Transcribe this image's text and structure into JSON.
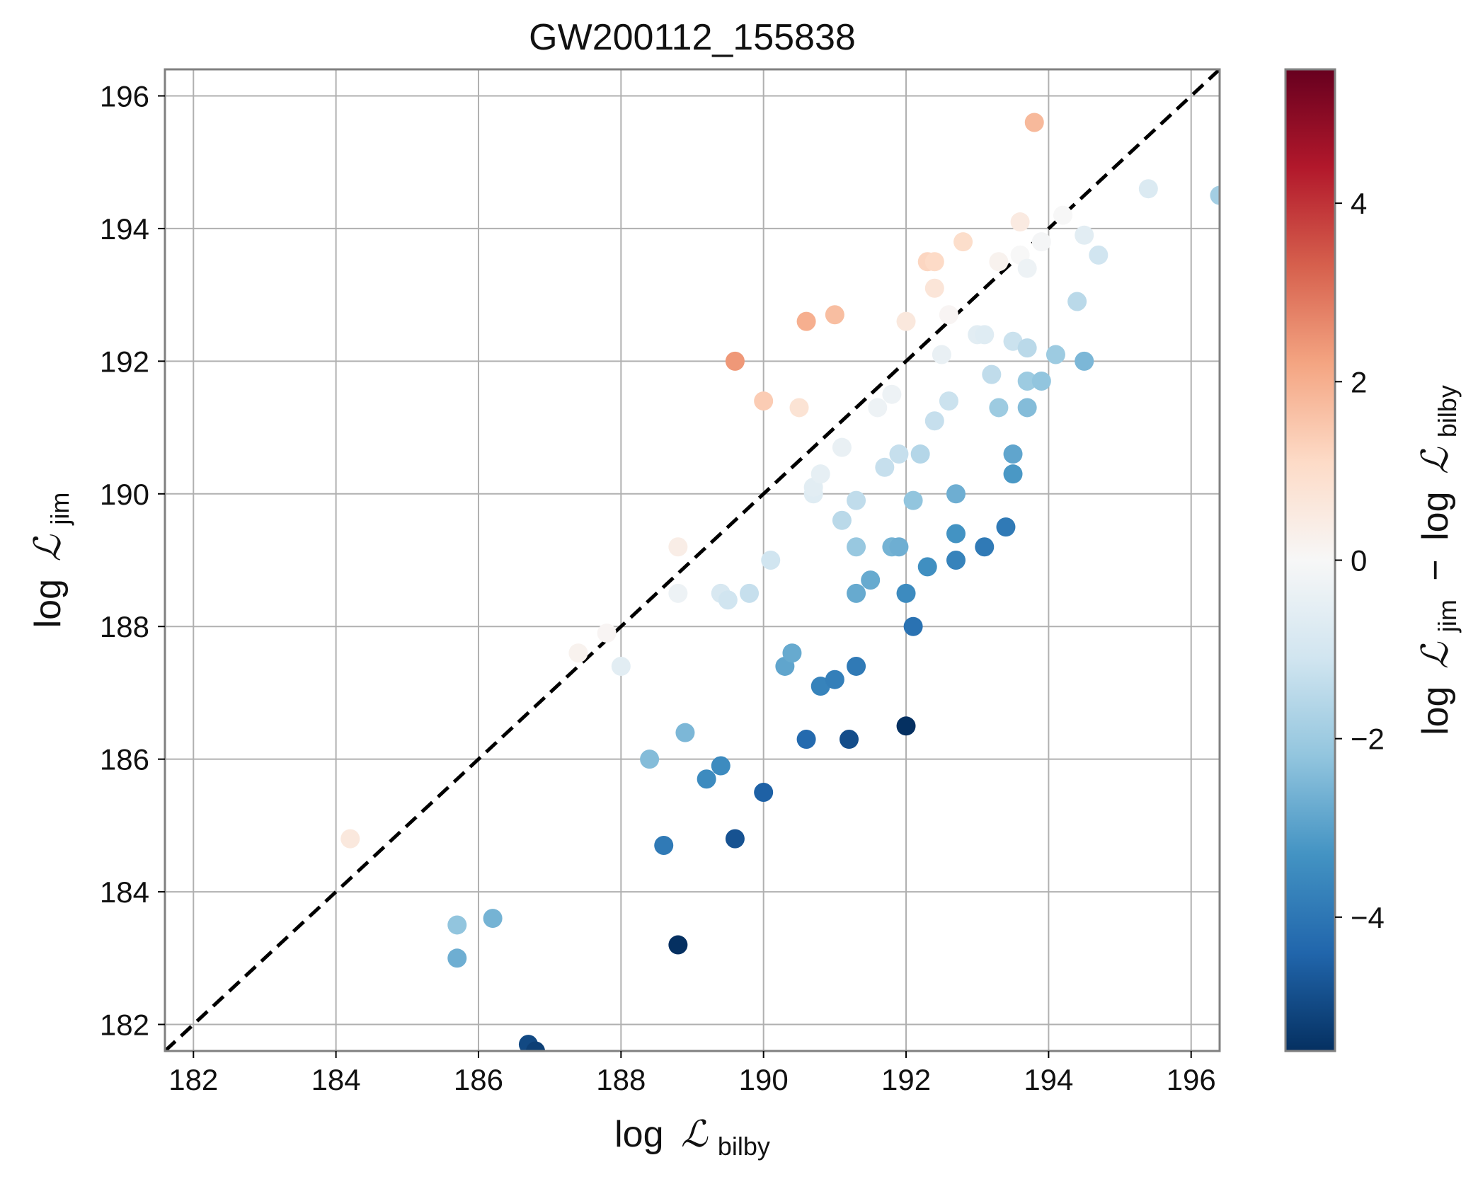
{
  "chart_data": {
    "type": "scatter",
    "title": "GW200112_155838",
    "xlabel": {
      "prefix": "log",
      "symbol": "ℒ",
      "sub": "bilby"
    },
    "ylabel": {
      "prefix": "log",
      "symbol": "ℒ",
      "sub": "jim"
    },
    "colorbar_label": {
      "a_prefix": "log",
      "a_symbol": "ℒ",
      "a_sub": "jim",
      "op": "−",
      "b_prefix": "log",
      "b_symbol": "ℒ",
      "b_sub": "bilby"
    },
    "xlim": [
      181.6,
      196.4
    ],
    "ylim": [
      181.6,
      196.4
    ],
    "xticks": [
      182,
      184,
      186,
      188,
      190,
      192,
      194,
      196
    ],
    "yticks": [
      182,
      184,
      186,
      188,
      190,
      192,
      194,
      196
    ],
    "xtick_labels": [
      "182",
      "184",
      "186",
      "188",
      "190",
      "192",
      "194",
      "196"
    ],
    "ytick_labels": [
      "182",
      "184",
      "186",
      "188",
      "190",
      "192",
      "194",
      "196"
    ],
    "color_range": [
      -5.5,
      5.5
    ],
    "colorbar_ticks": [
      -4,
      -2,
      0,
      2,
      4
    ],
    "colorbar_tick_labels": [
      "−4",
      "−2",
      "0",
      "2",
      "4"
    ],
    "colormap": "RdBu_r",
    "reference_line": "y = x (black dashed)",
    "grid": true,
    "points": [
      {
        "x": 184.2,
        "y": 184.8
      },
      {
        "x": 185.7,
        "y": 183.5
      },
      {
        "x": 185.7,
        "y": 183.0
      },
      {
        "x": 186.2,
        "y": 183.6
      },
      {
        "x": 186.7,
        "y": 181.7
      },
      {
        "x": 186.8,
        "y": 181.6
      },
      {
        "x": 187.4,
        "y": 187.6
      },
      {
        "x": 187.8,
        "y": 187.9
      },
      {
        "x": 188.0,
        "y": 187.4
      },
      {
        "x": 188.4,
        "y": 186.0
      },
      {
        "x": 188.6,
        "y": 184.7
      },
      {
        "x": 188.8,
        "y": 188.5
      },
      {
        "x": 188.8,
        "y": 189.2
      },
      {
        "x": 188.8,
        "y": 183.2
      },
      {
        "x": 188.9,
        "y": 186.4
      },
      {
        "x": 189.2,
        "y": 185.7
      },
      {
        "x": 189.4,
        "y": 185.9
      },
      {
        "x": 189.4,
        "y": 188.5
      },
      {
        "x": 189.5,
        "y": 188.4
      },
      {
        "x": 189.6,
        "y": 192.0
      },
      {
        "x": 189.6,
        "y": 184.8
      },
      {
        "x": 189.8,
        "y": 188.5
      },
      {
        "x": 190.0,
        "y": 191.4
      },
      {
        "x": 190.0,
        "y": 185.5
      },
      {
        "x": 190.1,
        "y": 189.0
      },
      {
        "x": 190.3,
        "y": 187.4
      },
      {
        "x": 190.4,
        "y": 187.6
      },
      {
        "x": 190.5,
        "y": 191.3
      },
      {
        "x": 190.6,
        "y": 186.3
      },
      {
        "x": 190.6,
        "y": 192.6
      },
      {
        "x": 190.7,
        "y": 190.0
      },
      {
        "x": 190.7,
        "y": 190.1
      },
      {
        "x": 190.8,
        "y": 190.3
      },
      {
        "x": 190.8,
        "y": 187.1
      },
      {
        "x": 191.0,
        "y": 192.7
      },
      {
        "x": 191.0,
        "y": 187.2
      },
      {
        "x": 191.1,
        "y": 190.7
      },
      {
        "x": 191.1,
        "y": 189.6
      },
      {
        "x": 191.2,
        "y": 186.3
      },
      {
        "x": 191.3,
        "y": 189.9
      },
      {
        "x": 191.3,
        "y": 187.4
      },
      {
        "x": 191.3,
        "y": 188.5
      },
      {
        "x": 191.3,
        "y": 189.2
      },
      {
        "x": 191.5,
        "y": 188.7
      },
      {
        "x": 191.6,
        "y": 191.3
      },
      {
        "x": 191.7,
        "y": 190.4
      },
      {
        "x": 191.8,
        "y": 191.5
      },
      {
        "x": 191.8,
        "y": 189.2
      },
      {
        "x": 191.9,
        "y": 190.6
      },
      {
        "x": 191.9,
        "y": 189.2
      },
      {
        "x": 192.0,
        "y": 192.6
      },
      {
        "x": 192.0,
        "y": 188.5
      },
      {
        "x": 192.0,
        "y": 186.5
      },
      {
        "x": 192.1,
        "y": 189.9
      },
      {
        "x": 192.1,
        "y": 188.0
      },
      {
        "x": 192.2,
        "y": 190.6
      },
      {
        "x": 192.3,
        "y": 188.9
      },
      {
        "x": 192.3,
        "y": 193.5
      },
      {
        "x": 192.4,
        "y": 193.5
      },
      {
        "x": 192.4,
        "y": 193.1
      },
      {
        "x": 192.4,
        "y": 191.1
      },
      {
        "x": 192.5,
        "y": 192.1
      },
      {
        "x": 192.6,
        "y": 191.4
      },
      {
        "x": 192.6,
        "y": 192.7
      },
      {
        "x": 192.7,
        "y": 189.0
      },
      {
        "x": 192.7,
        "y": 190.0
      },
      {
        "x": 192.7,
        "y": 189.4
      },
      {
        "x": 192.8,
        "y": 193.8
      },
      {
        "x": 193.0,
        "y": 192.4
      },
      {
        "x": 193.1,
        "y": 192.4
      },
      {
        "x": 193.1,
        "y": 189.2
      },
      {
        "x": 193.2,
        "y": 191.8
      },
      {
        "x": 193.3,
        "y": 191.3
      },
      {
        "x": 193.3,
        "y": 193.5
      },
      {
        "x": 193.4,
        "y": 189.5
      },
      {
        "x": 193.5,
        "y": 190.6
      },
      {
        "x": 193.5,
        "y": 190.3
      },
      {
        "x": 193.5,
        "y": 192.3
      },
      {
        "x": 193.6,
        "y": 194.1
      },
      {
        "x": 193.6,
        "y": 193.6
      },
      {
        "x": 193.7,
        "y": 192.2
      },
      {
        "x": 193.7,
        "y": 193.4
      },
      {
        "x": 193.7,
        "y": 191.7
      },
      {
        "x": 193.7,
        "y": 191.3
      },
      {
        "x": 193.8,
        "y": 195.6
      },
      {
        "x": 193.9,
        "y": 193.8
      },
      {
        "x": 193.9,
        "y": 191.7
      },
      {
        "x": 194.1,
        "y": 192.1
      },
      {
        "x": 194.2,
        "y": 194.2
      },
      {
        "x": 194.4,
        "y": 192.9
      },
      {
        "x": 194.5,
        "y": 192.0
      },
      {
        "x": 194.5,
        "y": 193.9
      },
      {
        "x": 194.7,
        "y": 193.6
      },
      {
        "x": 195.4,
        "y": 194.6
      },
      {
        "x": 196.4,
        "y": 194.5
      }
    ]
  }
}
